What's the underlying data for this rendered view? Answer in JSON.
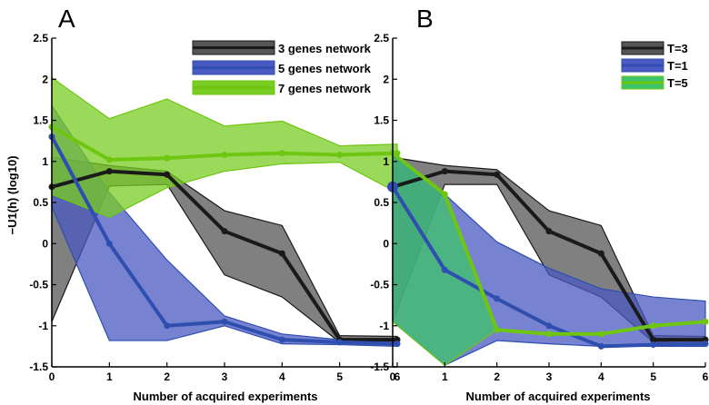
{
  "chart_data": [
    {
      "type": "line",
      "panel_label": "A",
      "xlabel": "Number of acquired experiments",
      "ylabel": "−U1(h) (log10)",
      "xlim": [
        0,
        6
      ],
      "ylim": [
        -1.5,
        2.5
      ],
      "xticks": [
        "0",
        "1",
        "2",
        "3",
        "4",
        "5",
        "6"
      ],
      "yticks": [
        "2.5",
        "2",
        "1.5",
        "1",
        "0.5",
        "0",
        "-0.5",
        "-1",
        "-1.5"
      ],
      "grid": false,
      "legend_position": "top-right",
      "x": [
        0,
        1,
        2,
        3,
        4,
        5,
        6
      ],
      "series": [
        {
          "name": "3 genes network",
          "color": "#1a1a1a",
          "fill": "#555555",
          "values": [
            0.69,
            0.88,
            0.84,
            0.15,
            -0.12,
            -1.17,
            -1.17
          ],
          "upper": [
            1.05,
            0.95,
            0.88,
            0.4,
            0.22,
            -1.12,
            -1.13
          ],
          "lower": [
            -0.95,
            0.7,
            0.72,
            -0.38,
            -0.65,
            -1.2,
            -1.22
          ]
        },
        {
          "name": "5 genes network",
          "color": "#2e4fb0",
          "fill": "#4a5ac0",
          "values": [
            1.3,
            0.0,
            -1.0,
            -0.95,
            -1.17,
            -1.2,
            -1.22
          ],
          "upper": [
            1.68,
            0.62,
            -0.2,
            -0.88,
            -1.1,
            -1.17,
            -1.18
          ],
          "lower": [
            0.45,
            -1.18,
            -1.18,
            -1.0,
            -1.22,
            -1.23,
            -1.25
          ]
        },
        {
          "name": "7 genes network",
          "color": "#6ec611",
          "fill": "#78cc22",
          "values": [
            1.42,
            1.02,
            1.04,
            1.08,
            1.1,
            1.08,
            1.1
          ],
          "upper": [
            2.02,
            1.52,
            1.76,
            1.43,
            1.49,
            1.19,
            1.21
          ],
          "lower": [
            0.6,
            0.32,
            0.68,
            0.88,
            0.97,
            0.99,
            0.62
          ]
        }
      ]
    },
    {
      "type": "line",
      "panel_label": "B",
      "xlabel": "Number of acquired experiments",
      "ylabel": "",
      "xlim": [
        0,
        6
      ],
      "ylim": [
        -1.5,
        2.5
      ],
      "xticks": [
        "0",
        "1",
        "2",
        "3",
        "4",
        "5",
        "6"
      ],
      "yticks": [
        "2.5",
        "2",
        "1.5",
        "1",
        "0.5",
        "0",
        "-0.5",
        "-1",
        "-1.5"
      ],
      "grid": false,
      "legend_position": "top-right",
      "x": [
        0,
        1,
        2,
        3,
        4,
        5,
        6
      ],
      "series": [
        {
          "name": "T=3",
          "color": "#1a1a1a",
          "fill": "#555555",
          "values": [
            0.69,
            0.88,
            0.84,
            0.15,
            -0.12,
            -1.17,
            -1.17
          ],
          "upper": [
            1.05,
            0.95,
            0.9,
            0.4,
            0.22,
            -1.12,
            -1.13
          ],
          "lower": [
            -0.95,
            0.72,
            0.72,
            -0.38,
            -0.65,
            -1.2,
            -1.22
          ]
        },
        {
          "name": "T=1",
          "color": "#2e4fb0",
          "fill": "#4a5ac0",
          "values": [
            0.69,
            -0.32,
            -0.67,
            -1.0,
            -1.25,
            -1.23,
            -1.22
          ],
          "upper": [
            1.1,
            0.6,
            0.02,
            -0.3,
            -0.55,
            -0.65,
            -0.7
          ],
          "lower": [
            -0.95,
            -1.48,
            -1.18,
            -1.22,
            -1.25,
            -1.25,
            -1.25
          ]
        },
        {
          "name": "T=5",
          "color": "#6ec611",
          "fill": "#3ec46a",
          "values": [
            1.1,
            0.6,
            -1.05,
            -1.1,
            -1.1,
            -1.0,
            -0.95
          ],
          "upper": [
            1.1,
            0.6,
            -1.05,
            -1.1,
            -1.1,
            -1.0,
            -0.95
          ],
          "lower": [
            -0.95,
            -1.48,
            -1.05,
            -1.1,
            -1.1,
            -1.0,
            -0.95
          ]
        }
      ]
    }
  ]
}
